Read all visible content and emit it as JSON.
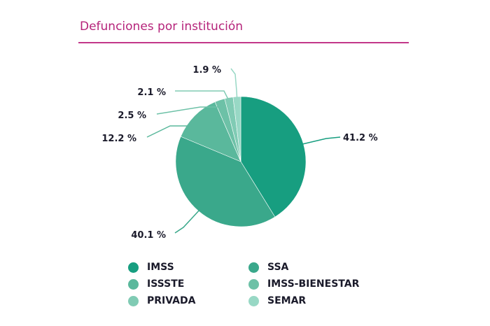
{
  "title": "Defunciones por institución",
  "chart_data": {
    "type": "pie",
    "title": "Defunciones por institución",
    "categories": [
      "IMSS",
      "SSA",
      "ISSSTE",
      "IMSS-BIENESTAR",
      "PRIVADA",
      "SEMAR"
    ],
    "values": [
      41.2,
      40.1,
      12.2,
      2.5,
      2.1,
      1.9
    ],
    "labels": [
      "41.2 %",
      "40.1 %",
      "12.2 %",
      "2.5 %",
      "2.1 %",
      "1.9 %"
    ],
    "colors": [
      "#179e80",
      "#3aa88b",
      "#5ab89c",
      "#6dc1a7",
      "#80cbb4",
      "#98d8c5"
    ],
    "legend_placement": "bottom"
  }
}
